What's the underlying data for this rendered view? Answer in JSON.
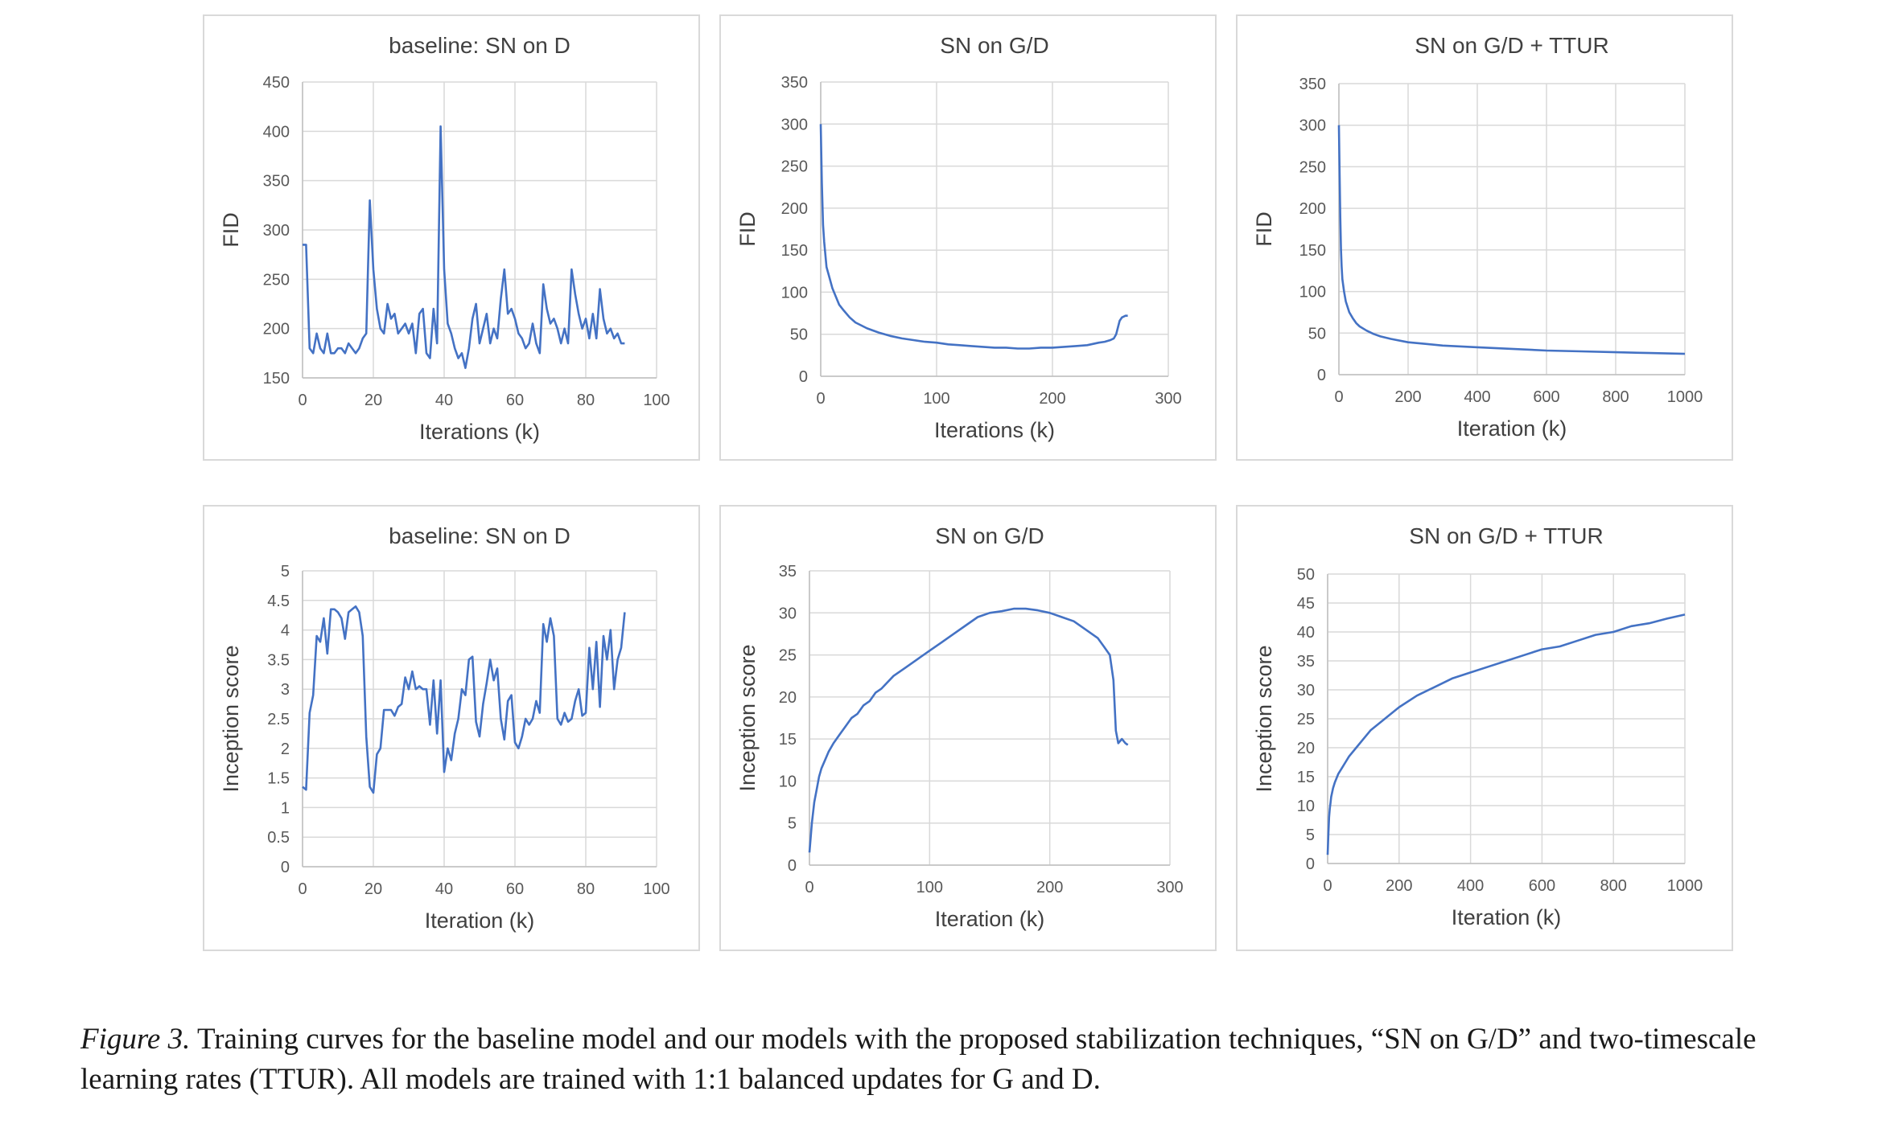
{
  "caption": {
    "label": "Figure 3.",
    "text": "Training curves for the baseline model and our models with the proposed stabilization techniques, “SN on G/D” and two-timescale learning rates (TTUR). All models are trained with 1:1 balanced updates for G and D."
  },
  "colors": {
    "series": "#4472c4",
    "grid": "#d9d9d9",
    "text": "#404040",
    "ticks": "#595959"
  },
  "chart_data": [
    {
      "type": "line",
      "title": "baseline: SN on D",
      "xlabel": "Iterations (k)",
      "ylabel": "FID",
      "xlim": [
        0,
        100
      ],
      "ylim": [
        150,
        450
      ],
      "xticks": [
        0,
        20,
        40,
        60,
        80,
        100
      ],
      "yticks": [
        150,
        200,
        250,
        300,
        350,
        400,
        450
      ],
      "grid": true,
      "x": [
        0,
        1,
        2,
        3,
        4,
        5,
        6,
        7,
        8,
        9,
        10,
        11,
        12,
        13,
        14,
        15,
        16,
        17,
        18,
        19,
        20,
        21,
        22,
        23,
        24,
        25,
        26,
        27,
        28,
        29,
        30,
        31,
        32,
        33,
        34,
        35,
        36,
        37,
        38,
        39,
        40,
        41,
        42,
        43,
        44,
        45,
        46,
        47,
        48,
        49,
        50,
        51,
        52,
        53,
        54,
        55,
        56,
        57,
        58,
        59,
        60,
        61,
        62,
        63,
        64,
        65,
        66,
        67,
        68,
        69,
        70,
        71,
        72,
        73,
        74,
        75,
        76,
        77,
        78,
        79,
        80,
        81,
        82,
        83,
        84,
        85,
        86,
        87,
        88,
        89,
        90,
        91
      ],
      "y": [
        285,
        285,
        180,
        175,
        195,
        180,
        175,
        195,
        175,
        175,
        180,
        180,
        175,
        185,
        180,
        175,
        180,
        190,
        195,
        330,
        260,
        220,
        200,
        195,
        225,
        210,
        215,
        195,
        200,
        205,
        195,
        205,
        175,
        215,
        220,
        175,
        170,
        220,
        185,
        405,
        260,
        205,
        195,
        180,
        170,
        175,
        160,
        180,
        210,
        225,
        185,
        200,
        215,
        185,
        200,
        190,
        230,
        260,
        215,
        220,
        210,
        195,
        190,
        180,
        185,
        205,
        185,
        175,
        245,
        220,
        205,
        210,
        200,
        185,
        200,
        185,
        260,
        235,
        215,
        200,
        210,
        190,
        215,
        190,
        240,
        210,
        195,
        200,
        190,
        195,
        185,
        185
      ]
    },
    {
      "type": "line",
      "title": "SN on G/D",
      "xlabel": "Iterations (k)",
      "ylabel": "FID",
      "xlim": [
        0,
        300
      ],
      "ylim": [
        0,
        350
      ],
      "xticks": [
        0,
        100,
        200,
        300
      ],
      "yticks": [
        0,
        50,
        100,
        150,
        200,
        250,
        300,
        350
      ],
      "grid": true,
      "x": [
        0,
        1,
        2,
        3,
        5,
        7,
        10,
        13,
        16,
        20,
        25,
        30,
        40,
        50,
        60,
        70,
        80,
        90,
        100,
        110,
        120,
        130,
        140,
        150,
        160,
        170,
        180,
        190,
        200,
        210,
        220,
        230,
        240,
        245,
        250,
        253,
        255,
        258,
        260,
        263,
        265
      ],
      "y": [
        300,
        230,
        180,
        160,
        130,
        120,
        105,
        95,
        85,
        78,
        70,
        64,
        57,
        52,
        48,
        45,
        43,
        41,
        40,
        38,
        37,
        36,
        35,
        34,
        34,
        33,
        33,
        34,
        34,
        35,
        36,
        37,
        40,
        41,
        43,
        45,
        50,
        66,
        70,
        72,
        72
      ]
    },
    {
      "type": "line",
      "title": "SN on G/D + TTUR",
      "xlabel": "Iteration (k)",
      "ylabel": "FID",
      "xlim": [
        0,
        1000
      ],
      "ylim": [
        0,
        350
      ],
      "xticks": [
        0,
        200,
        400,
        600,
        800,
        1000
      ],
      "yticks": [
        0,
        50,
        100,
        150,
        200,
        250,
        300,
        350
      ],
      "grid": true,
      "x": [
        0,
        2,
        4,
        6,
        8,
        10,
        15,
        20,
        30,
        40,
        50,
        60,
        80,
        100,
        120,
        150,
        200,
        250,
        300,
        400,
        500,
        600,
        700,
        800,
        900,
        1000
      ],
      "y": [
        300,
        240,
        190,
        150,
        130,
        115,
        100,
        88,
        75,
        68,
        62,
        58,
        53,
        49,
        46,
        43,
        39,
        37,
        35,
        33,
        31,
        29,
        28,
        27,
        26,
        25
      ]
    },
    {
      "type": "line",
      "title": "baseline: SN on D",
      "xlabel": "Iteration (k)",
      "ylabel": "Inception score",
      "xlim": [
        0,
        100
      ],
      "ylim": [
        0,
        5
      ],
      "xticks": [
        0,
        20,
        40,
        60,
        80,
        100
      ],
      "yticks": [
        0,
        0.5,
        1,
        1.5,
        2,
        2.5,
        3,
        3.5,
        4,
        4.5,
        5
      ],
      "grid": true,
      "x": [
        0,
        1,
        2,
        3,
        4,
        5,
        6,
        7,
        8,
        9,
        10,
        11,
        12,
        13,
        14,
        15,
        16,
        17,
        18,
        19,
        20,
        21,
        22,
        23,
        24,
        25,
        26,
        27,
        28,
        29,
        30,
        31,
        32,
        33,
        34,
        35,
        36,
        37,
        38,
        39,
        40,
        41,
        42,
        43,
        44,
        45,
        46,
        47,
        48,
        49,
        50,
        51,
        52,
        53,
        54,
        55,
        56,
        57,
        58,
        59,
        60,
        61,
        62,
        63,
        64,
        65,
        66,
        67,
        68,
        69,
        70,
        71,
        72,
        73,
        74,
        75,
        76,
        77,
        78,
        79,
        80,
        81,
        82,
        83,
        84,
        85,
        86,
        87,
        88,
        89,
        90,
        91
      ],
      "y": [
        1.35,
        1.3,
        2.6,
        2.9,
        3.9,
        3.8,
        4.2,
        3.6,
        4.35,
        4.35,
        4.3,
        4.2,
        3.85,
        4.3,
        4.35,
        4.4,
        4.3,
        3.9,
        2.2,
        1.35,
        1.25,
        1.9,
        2.0,
        2.65,
        2.65,
        2.65,
        2.55,
        2.7,
        2.75,
        3.2,
        3.0,
        3.3,
        3.0,
        3.05,
        3.0,
        3.0,
        2.4,
        3.15,
        2.25,
        3.15,
        1.6,
        2.0,
        1.8,
        2.25,
        2.5,
        3.0,
        2.9,
        3.5,
        3.55,
        2.45,
        2.2,
        2.75,
        3.1,
        3.5,
        3.15,
        3.35,
        2.5,
        2.15,
        2.8,
        2.9,
        2.1,
        2.0,
        2.2,
        2.5,
        2.4,
        2.5,
        2.8,
        2.6,
        4.1,
        3.8,
        4.2,
        3.9,
        2.5,
        2.4,
        2.6,
        2.45,
        2.5,
        2.8,
        3.0,
        2.55,
        2.6,
        3.7,
        3.0,
        3.8,
        2.7,
        3.9,
        3.5,
        4.0,
        3.0,
        3.5,
        3.7,
        4.3
      ]
    },
    {
      "type": "line",
      "title": "SN on G/D",
      "xlabel": "Iteration (k)",
      "ylabel": "Inception score",
      "xlim": [
        0,
        300
      ],
      "ylim": [
        0,
        35
      ],
      "xticks": [
        0,
        100,
        200,
        300
      ],
      "yticks": [
        0,
        5,
        10,
        15,
        20,
        25,
        30,
        35
      ],
      "grid": true,
      "x": [
        0,
        2,
        4,
        6,
        8,
        10,
        13,
        16,
        20,
        25,
        30,
        35,
        40,
        45,
        50,
        55,
        60,
        70,
        80,
        90,
        100,
        110,
        120,
        130,
        140,
        150,
        160,
        170,
        180,
        190,
        200,
        210,
        220,
        230,
        240,
        245,
        250,
        253,
        255,
        257,
        260,
        263,
        265
      ],
      "y": [
        1.5,
        5,
        7.5,
        9,
        10.5,
        11.5,
        12.5,
        13.5,
        14.5,
        15.5,
        16.5,
        17.5,
        18,
        19,
        19.5,
        20.5,
        21,
        22.5,
        23.5,
        24.5,
        25.5,
        26.5,
        27.5,
        28.5,
        29.5,
        30,
        30.2,
        30.5,
        30.5,
        30.3,
        30,
        29.5,
        29,
        28,
        27,
        26,
        25,
        22,
        16,
        14.5,
        15,
        14.5,
        14.3
      ]
    },
    {
      "type": "line",
      "title": "SN on G/D + TTUR",
      "xlabel": "Iteration (k)",
      "ylabel": "Inception score",
      "xlim": [
        0,
        1000
      ],
      "ylim": [
        0,
        50
      ],
      "xticks": [
        0,
        200,
        400,
        600,
        800,
        1000
      ],
      "yticks": [
        0,
        5,
        10,
        15,
        20,
        25,
        30,
        35,
        40,
        45,
        50
      ],
      "grid": true,
      "x": [
        0,
        2,
        4,
        6,
        8,
        10,
        15,
        20,
        30,
        40,
        50,
        60,
        80,
        100,
        120,
        150,
        200,
        250,
        300,
        350,
        400,
        450,
        500,
        550,
        600,
        650,
        700,
        750,
        800,
        850,
        900,
        950,
        1000
      ],
      "y": [
        1.5,
        5,
        8,
        9.5,
        10.5,
        11.5,
        13,
        14,
        15.5,
        16.5,
        17.5,
        18.5,
        20,
        21.5,
        23,
        24.5,
        27,
        29,
        30.5,
        32,
        33,
        34,
        35,
        36,
        37,
        37.5,
        38.5,
        39.5,
        40,
        41,
        41.5,
        42.3,
        43
      ]
    }
  ]
}
